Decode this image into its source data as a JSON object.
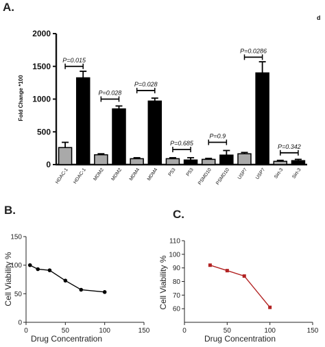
{
  "panels": {
    "a": "A.",
    "b": "B.",
    "c": "C.",
    "corner_mark": "d"
  },
  "chart_data": [
    {
      "type": "bar",
      "ylabel": "Fold Change *100",
      "ylim": [
        0,
        2000
      ],
      "yticks": [
        0,
        500,
        1000,
        1500,
        2000
      ],
      "categories": [
        "HDAC-1",
        "HDAC-1",
        "MDM2",
        "MDM2",
        "MDM4",
        "MDM4",
        "P53",
        "P53",
        "PSMD10",
        "PSMD10",
        "USP7",
        "USP7",
        "Sirt-3",
        "Sirt-3"
      ],
      "values": [
        260,
        1325,
        150,
        850,
        90,
        970,
        90,
        70,
        80,
        145,
        165,
        1400,
        50,
        60
      ],
      "errors": [
        80,
        100,
        15,
        45,
        15,
        45,
        15,
        35,
        15,
        70,
        20,
        170,
        15,
        20
      ],
      "colors": [
        "#a9a9a9",
        "#000000",
        "#a9a9a9",
        "#000000",
        "#a9a9a9",
        "#000000",
        "#a9a9a9",
        "#000000",
        "#a9a9a9",
        "#000000",
        "#a9a9a9",
        "#000000",
        "#a9a9a9",
        "#000000"
      ],
      "comparisons": [
        {
          "label": "P=0.015",
          "pair": [
            0,
            1
          ],
          "y": 1500
        },
        {
          "label": "P=0.028",
          "pair": [
            2,
            3
          ],
          "y": 1000
        },
        {
          "label": "P=0.028",
          "pair": [
            4,
            5
          ],
          "y": 1130
        },
        {
          "label": "P=0.685",
          "pair": [
            6,
            7
          ],
          "y": 230
        },
        {
          "label": "P=0.9",
          "pair": [
            8,
            9
          ],
          "y": 340
        },
        {
          "label": "P=0.0286",
          "pair": [
            10,
            11
          ],
          "y": 1640
        },
        {
          "label": "P=0.342",
          "pair": [
            12,
            13
          ],
          "y": 180
        }
      ]
    },
    {
      "type": "line",
      "xlabel": "Drug Concentration",
      "ylabel": "Cell Viability %",
      "xlim": [
        0,
        150
      ],
      "ylim": [
        0,
        150
      ],
      "xticks": [
        0,
        50,
        100,
        150
      ],
      "yticks": [
        0,
        50,
        100,
        150
      ],
      "x": [
        5,
        15,
        30,
        50,
        70,
        100
      ],
      "y": [
        100,
        93,
        91,
        73,
        57,
        53
      ],
      "color": "#000000",
      "marker": "circle"
    },
    {
      "type": "line",
      "xlabel": "Drug Concentration",
      "ylabel": "Cell Viability %",
      "xlim": [
        0,
        150
      ],
      "ylim": [
        50,
        110
      ],
      "xticks": [
        0,
        50,
        100,
        150
      ],
      "yticks": [
        60,
        70,
        80,
        90,
        100,
        110
      ],
      "x": [
        30,
        50,
        70,
        100
      ],
      "y": [
        92,
        88,
        84,
        61
      ],
      "color": "#b22222",
      "marker": "square"
    }
  ]
}
